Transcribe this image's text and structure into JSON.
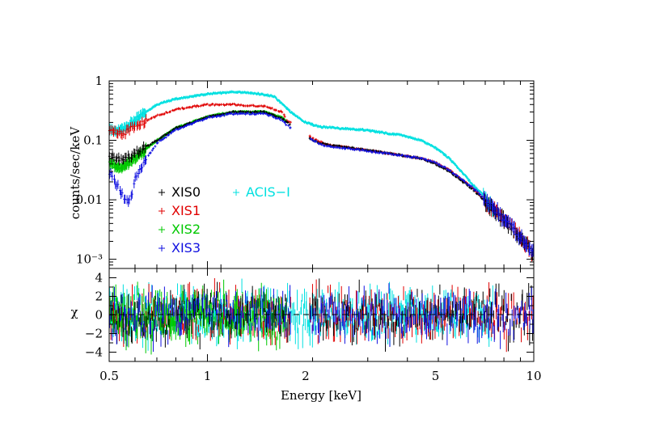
{
  "chart_data": [
    {
      "type": "scatter",
      "panel": "spectrum",
      "ylabel": "counts/sec/keV",
      "xscale": "log",
      "yscale": "log",
      "xlim": [
        0.5,
        10
      ],
      "ylim": [
        0.0007,
        1
      ],
      "xticks": [
        0.5,
        1,
        2,
        5,
        10
      ],
      "xtick_labels": [
        "0.5",
        "1",
        "2",
        "5",
        "10"
      ],
      "yticks": [
        0.001,
        0.01,
        0.1,
        1
      ],
      "ytick_labels": [
        "10⁻³",
        "0.01",
        "0.1",
        "1"
      ],
      "legend_position": "center-left",
      "series": [
        {
          "name": "XIS0",
          "color": "#000000",
          "x": [
            0.5,
            0.55,
            0.6,
            0.7,
            0.8,
            1.0,
            1.2,
            1.5,
            1.7,
            1.75,
            2.1,
            2.3,
            3.0,
            4.0,
            4.5,
            5.0,
            5.5,
            6.5,
            7.5,
            8.5,
            9.5,
            10.0
          ],
          "y": [
            0.055,
            0.045,
            0.06,
            0.1,
            0.16,
            0.25,
            0.3,
            0.3,
            0.23,
            0.2,
            0.1,
            0.085,
            0.07,
            0.055,
            0.05,
            0.04,
            0.03,
            0.015,
            0.007,
            0.0035,
            0.0018,
            0.0013
          ]
        },
        {
          "name": "XIS1",
          "color": "#e00000",
          "x": [
            0.5,
            0.55,
            0.6,
            0.7,
            0.8,
            1.0,
            1.2,
            1.5,
            1.7,
            1.75,
            2.1,
            2.3,
            3.0,
            4.0,
            4.5,
            5.0,
            5.5,
            6.5,
            7.5,
            8.5,
            9.5,
            10.0
          ],
          "y": [
            0.14,
            0.13,
            0.17,
            0.26,
            0.33,
            0.4,
            0.4,
            0.37,
            0.3,
            0.22,
            0.11,
            0.085,
            0.07,
            0.055,
            0.05,
            0.042,
            0.032,
            0.016,
            0.007,
            0.0035,
            0.0018,
            0.0012
          ]
        },
        {
          "name": "XIS2",
          "color": "#00c800",
          "x": [
            0.5,
            0.55,
            0.6,
            0.7,
            0.8,
            1.0,
            1.2,
            1.5,
            1.7,
            1.75
          ],
          "y": [
            0.04,
            0.035,
            0.05,
            0.1,
            0.16,
            0.25,
            0.3,
            0.3,
            0.24,
            0.2
          ]
        },
        {
          "name": "XIS3",
          "color": "#1010e0",
          "x": [
            0.5,
            0.55,
            0.58,
            0.6,
            0.7,
            0.8,
            1.0,
            1.2,
            1.5,
            1.7,
            1.75,
            2.1,
            2.3,
            3.0,
            4.0,
            4.5,
            5.0,
            5.5,
            6.5,
            7.5,
            8.5,
            9.5,
            10.0
          ],
          "y": [
            0.03,
            0.012,
            0.009,
            0.025,
            0.09,
            0.15,
            0.24,
            0.28,
            0.28,
            0.22,
            0.18,
            0.1,
            0.08,
            0.068,
            0.055,
            0.05,
            0.042,
            0.032,
            0.016,
            0.0075,
            0.0037,
            0.0019,
            0.0013
          ]
        },
        {
          "name": "ACIS−I",
          "color": "#00e0e0",
          "x": [
            0.5,
            0.55,
            0.6,
            0.7,
            0.8,
            1.0,
            1.2,
            1.4,
            1.6,
            1.8,
            2.0,
            2.2,
            2.5,
            3.0,
            4.0,
            4.5,
            5.0,
            5.5,
            6.0,
            6.5,
            7.0,
            7.5
          ],
          "y": [
            0.15,
            0.15,
            0.22,
            0.4,
            0.5,
            0.6,
            0.65,
            0.62,
            0.55,
            0.3,
            0.2,
            0.17,
            0.16,
            0.15,
            0.12,
            0.1,
            0.075,
            0.05,
            0.03,
            0.018,
            0.012,
            0.007
          ]
        }
      ]
    },
    {
      "type": "scatter",
      "panel": "residuals",
      "xlabel": "Energy [keV]",
      "ylabel": "χ",
      "xscale": "log",
      "xlim": [
        0.5,
        10
      ],
      "ylim": [
        -5,
        5
      ],
      "yticks": [
        -4,
        -2,
        0,
        2,
        4
      ],
      "ytick_labels": [
        "−4",
        "−2",
        "0",
        "2",
        "4"
      ],
      "zero_line": "dashed",
      "description_values": "residuals scattered between about -4 and +4 around 0 for all five series"
    }
  ]
}
